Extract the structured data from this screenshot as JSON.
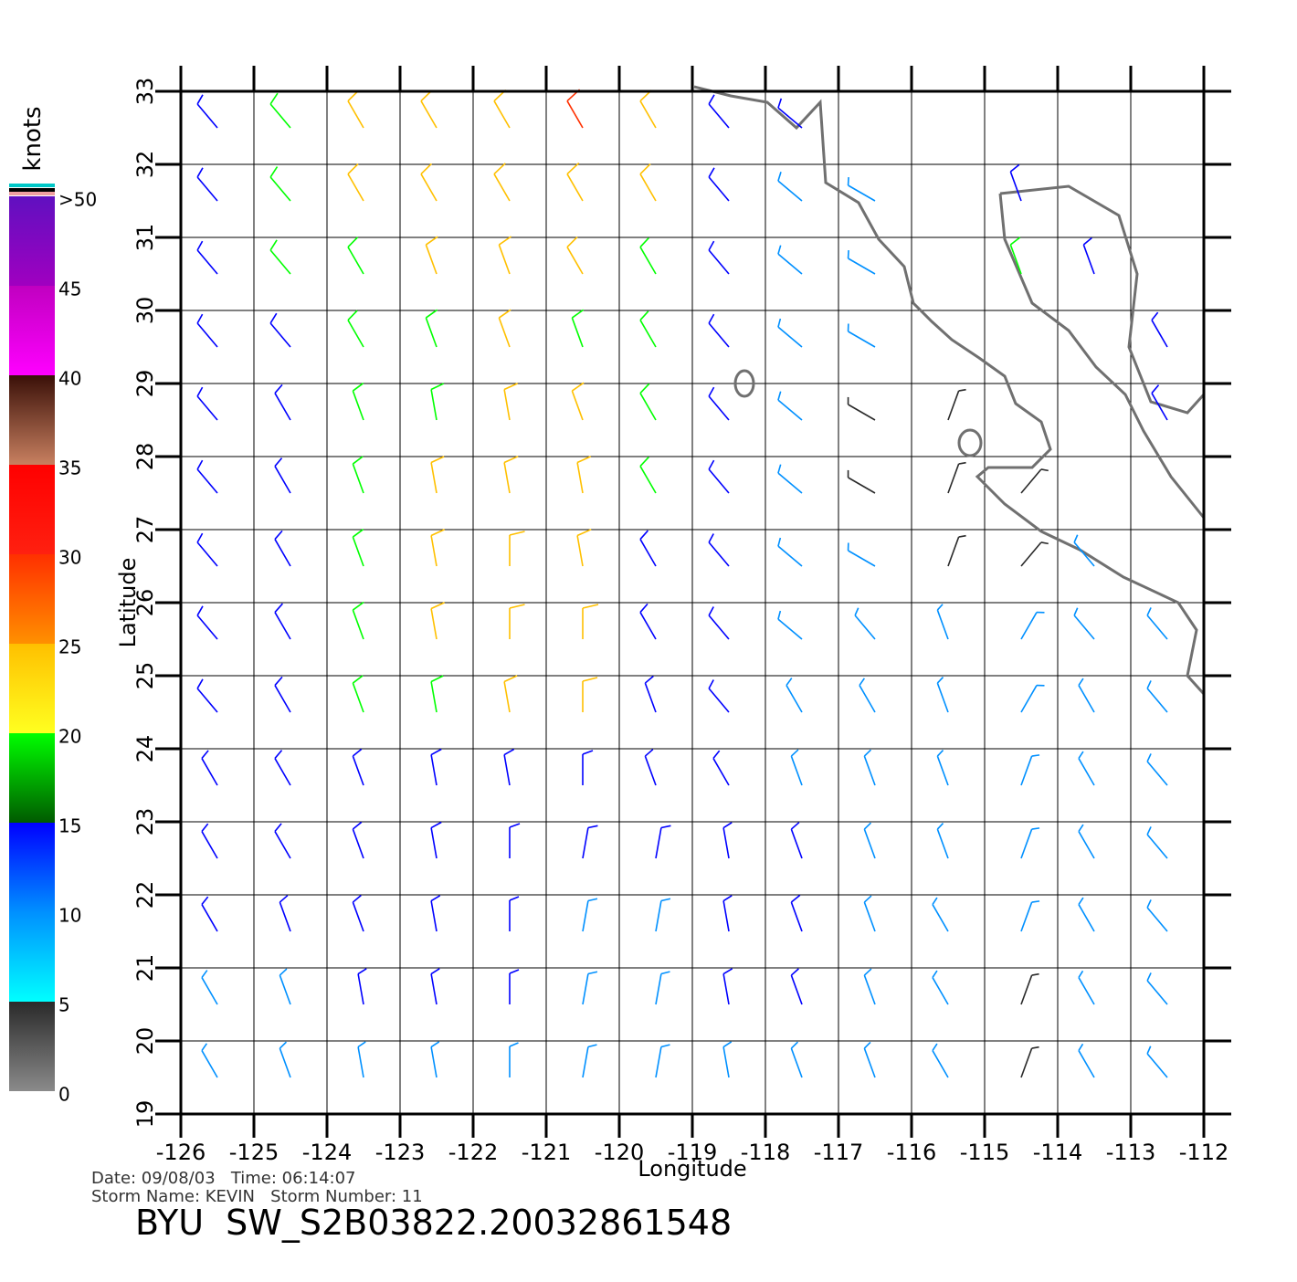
{
  "chart_data": {
    "type": "wind-barb",
    "xlabel": "Longitude",
    "ylabel": "Latitude",
    "xlim": [
      -126,
      -112
    ],
    "ylim": [
      19,
      33
    ],
    "xticks": [
      -126,
      -125,
      -124,
      -123,
      -122,
      -121,
      -120,
      -119,
      -118,
      -117,
      -116,
      -115,
      -114,
      -113,
      -112
    ],
    "yticks": [
      19,
      20,
      21,
      22,
      23,
      24,
      25,
      26,
      27,
      28,
      29,
      30,
      31,
      32,
      33
    ],
    "grid": true,
    "x": [
      -125.5,
      -124.5,
      -123.5,
      -122.5,
      -121.5,
      -120.5,
      -119.5,
      -118.5,
      -117.5,
      -116.5,
      -115.5,
      -114.5,
      -113.5,
      -112.5
    ],
    "y": [
      32.5,
      31.5,
      30.5,
      29.5,
      28.5,
      27.5,
      26.5,
      25.5,
      24.5,
      23.5,
      22.5,
      21.5,
      20.5,
      19.5
    ],
    "speed": [
      [
        12,
        17,
        21,
        22,
        24,
        26,
        23,
        12,
        10,
        null,
        null,
        null,
        null,
        null
      ],
      [
        12,
        16,
        20,
        21,
        23,
        24,
        20,
        12,
        9,
        6,
        null,
        13,
        null,
        null
      ],
      [
        11,
        15,
        19,
        20,
        21,
        20,
        16,
        11,
        8,
        6,
        null,
        15,
        12,
        null
      ],
      [
        11,
        14,
        18,
        19,
        20,
        19,
        15,
        11,
        7,
        5,
        null,
        null,
        null,
        10
      ],
      [
        11,
        13,
        17,
        19,
        21,
        20,
        17,
        11,
        8,
        4,
        4,
        null,
        null,
        12
      ],
      [
        11,
        12,
        16,
        20,
        22,
        21,
        16,
        11,
        8,
        4,
        4,
        4,
        null,
        null
      ],
      [
        11,
        13,
        17,
        21,
        23,
        22,
        14,
        10,
        7,
        5,
        4,
        4,
        6,
        null
      ],
      [
        12,
        14,
        18,
        21,
        23,
        24,
        13,
        10,
        7,
        6,
        5,
        5,
        6,
        7
      ],
      [
        12,
        13,
        16,
        18,
        20,
        22,
        12,
        10,
        8,
        7,
        6,
        5,
        6,
        7
      ],
      [
        11,
        12,
        13,
        14,
        13,
        12,
        11,
        10,
        9,
        8,
        6,
        5,
        6,
        7
      ],
      [
        10,
        11,
        13,
        14,
        12,
        10,
        10,
        10,
        11,
        8,
        6,
        5,
        6,
        7
      ],
      [
        10,
        11,
        12,
        11,
        10,
        9,
        9,
        10,
        13,
        9,
        6,
        5,
        6,
        7
      ],
      [
        8,
        9,
        10,
        10,
        10,
        9,
        8,
        11,
        10,
        9,
        6,
        4,
        5,
        7
      ],
      [
        7,
        8,
        8,
        9,
        9,
        8,
        8,
        9,
        8,
        7,
        6,
        4,
        5,
        6
      ]
    ],
    "direction": [
      [
        320,
        320,
        330,
        330,
        330,
        330,
        330,
        320,
        310,
        null,
        null,
        null,
        null,
        null
      ],
      [
        320,
        320,
        330,
        330,
        330,
        330,
        330,
        320,
        310,
        300,
        null,
        340,
        null,
        null
      ],
      [
        320,
        320,
        330,
        340,
        340,
        330,
        330,
        320,
        310,
        300,
        null,
        340,
        340,
        null
      ],
      [
        320,
        320,
        330,
        340,
        340,
        340,
        330,
        320,
        310,
        300,
        null,
        null,
        null,
        330
      ],
      [
        320,
        330,
        340,
        350,
        350,
        340,
        330,
        320,
        310,
        300,
        20,
        null,
        null,
        330
      ],
      [
        320,
        330,
        340,
        350,
        350,
        350,
        330,
        320,
        310,
        300,
        20,
        40,
        null,
        null
      ],
      [
        320,
        330,
        340,
        350,
        0,
        350,
        330,
        320,
        310,
        300,
        20,
        40,
        320,
        null
      ],
      [
        320,
        330,
        340,
        350,
        0,
        0,
        330,
        320,
        310,
        320,
        340,
        30,
        320,
        320
      ],
      [
        320,
        330,
        340,
        350,
        350,
        0,
        340,
        320,
        330,
        330,
        340,
        30,
        330,
        320
      ],
      [
        330,
        330,
        340,
        350,
        350,
        0,
        340,
        330,
        340,
        340,
        340,
        20,
        330,
        320
      ],
      [
        330,
        330,
        340,
        350,
        0,
        10,
        10,
        350,
        340,
        340,
        340,
        20,
        330,
        320
      ],
      [
        330,
        340,
        340,
        350,
        0,
        10,
        10,
        350,
        340,
        340,
        330,
        20,
        330,
        320
      ],
      [
        330,
        340,
        350,
        350,
        0,
        10,
        10,
        350,
        340,
        340,
        330,
        20,
        330,
        320
      ],
      [
        330,
        340,
        350,
        350,
        0,
        10,
        10,
        350,
        340,
        340,
        330,
        20,
        330,
        320
      ]
    ],
    "colorbar": {
      "label": "knots",
      "ticks": [
        0,
        5,
        10,
        15,
        20,
        25,
        30,
        35,
        40,
        45,
        {
          "value": 50,
          "label": ">50"
        }
      ],
      "colors": [
        [
          "#8a8a8a",
          "#2a2a2a"
        ],
        [
          "#00ffff",
          "#0090ff"
        ],
        [
          "#0090ff",
          "#0000ff"
        ],
        [
          "#005a00",
          "#00ff00"
        ],
        [
          "#ffff20",
          "#ffc000"
        ],
        [
          "#ff9000",
          "#ff3000"
        ],
        [
          "#ff2010",
          "#ff0000"
        ],
        [
          "#c88060",
          "#3a1008"
        ],
        [
          "#ff00ff",
          "#c000c0"
        ],
        [
          "#a000c0",
          "#6010c0"
        ]
      ]
    },
    "footer": [
      "Date: 09/08/03   Time: 06:14:07",
      "Storm Name: KEVIN   Storm Number: 11"
    ],
    "title": "BYU  SW_S2B03822.20032861548"
  }
}
